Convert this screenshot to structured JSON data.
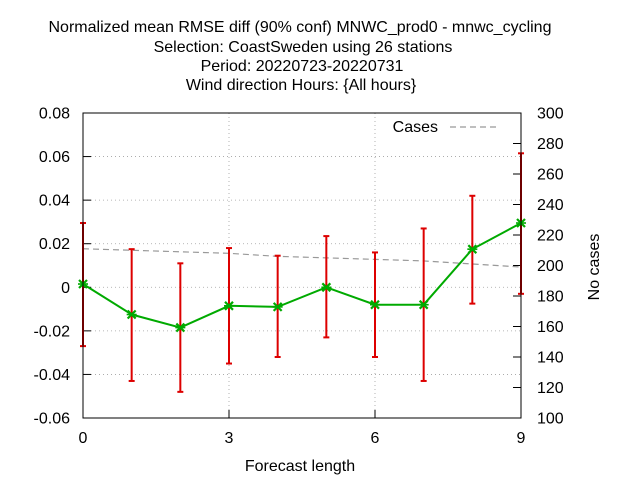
{
  "chart_data": {
    "type": "line",
    "title_lines": [
      "Normalized mean RMSE diff (90% conf) MNWC_prod0 - mnwc_cycling",
      "Selection: CoastSweden using    26 stations",
      "Period: 20220723-20220731",
      "Wind direction   Hours: {All hours}"
    ],
    "xlabel": "Forecast length",
    "ylabel": "",
    "y2label": "No cases",
    "xlim": [
      0,
      9
    ],
    "ylim": [
      -0.06,
      0.08
    ],
    "y2lim": [
      100,
      300
    ],
    "x_ticks": [
      0,
      3,
      6,
      9
    ],
    "y_ticks": [
      -0.06,
      -0.04,
      -0.02,
      0,
      0.02,
      0.04,
      0.06,
      0.08
    ],
    "y_tick_labels": [
      "-0.06",
      "-0.04",
      "-0.02",
      "0",
      "0.02",
      "0.04",
      "0.06",
      "0.08"
    ],
    "y2_ticks": [
      100,
      120,
      140,
      160,
      180,
      200,
      220,
      240,
      260,
      280,
      300
    ],
    "grid": true,
    "legend_position": "top-right",
    "x": [
      0,
      1,
      2,
      3,
      4,
      5,
      6,
      7,
      8,
      9
    ],
    "series": [
      {
        "name": "",
        "axis": "left",
        "color": "#00aa00",
        "values": [
          0.0015,
          -0.0125,
          -0.0185,
          -0.0085,
          -0.009,
          0.0,
          -0.008,
          -0.008,
          0.0175,
          0.0295
        ],
        "error_low": [
          -0.027,
          -0.043,
          -0.048,
          -0.035,
          -0.032,
          -0.023,
          -0.032,
          -0.043,
          -0.0075,
          -0.003
        ],
        "error_high": [
          0.0295,
          0.0175,
          0.011,
          0.018,
          0.0145,
          0.0235,
          0.016,
          0.027,
          0.042,
          0.0615
        ],
        "error_color": "#dd0000"
      },
      {
        "name": "Cases",
        "axis": "right",
        "color": "#999999",
        "dashed": true,
        "values": [
          211,
          210,
          209,
          208,
          206,
          205,
          204,
          203,
          201,
          199
        ]
      }
    ]
  }
}
